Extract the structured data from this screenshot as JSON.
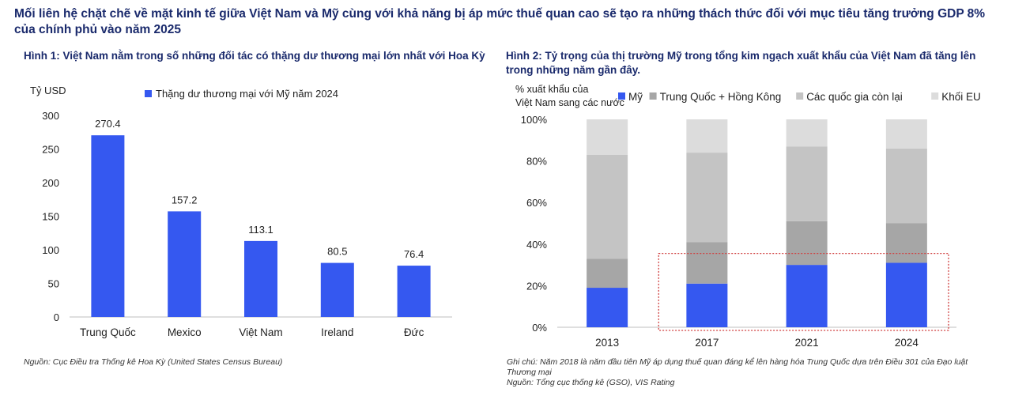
{
  "headline": "Mối liên hệ chặt chẽ về mặt kinh tế giữa Việt Nam và Mỹ cùng với khả năng bị áp mức thuế quan cao sẽ tạo ra những thách thức đối với mục tiêu tăng trưởng GDP 8% của chính phủ vào năm 2025",
  "figures": [
    {
      "title": "Hình 1: Việt Nam nằm trong số những đối tác có thặng dư thương mại lớn nhất với Hoa Kỳ",
      "notes": [
        "Nguồn: Cục Điều tra Thống kê Hoa Kỳ (United States Census Bureau)"
      ]
    },
    {
      "title": "Hình 2: Tỷ trọng của thị trường Mỹ trong tổng kim ngạch xuất khẩu của Việt Nam đã tăng lên trong những năm gần đây.",
      "notes": [
        "Ghi chú: Năm 2018 là năm đầu tiên Mỹ áp dụng thuế quan đáng kể lên hàng hóa Trung Quốc dựa trên Điều 301 của Đạo luật Thương mại",
        "Nguồn: Tổng cục thống kê (GSO), VIS Rating"
      ]
    }
  ],
  "chart_data": [
    {
      "type": "bar",
      "ylabel": "Tỷ USD",
      "ylim": [
        0,
        300
      ],
      "yticks": [
        "0",
        "50",
        "100",
        "150",
        "200",
        "250",
        "300"
      ],
      "categories": [
        "Trung Quốc",
        "Mexico",
        "Việt Nam",
        "Ireland",
        "Đức"
      ],
      "series": [
        {
          "name": "Thặng dư thương mại với Mỹ năm 2024",
          "values": [
            270.4,
            157.2,
            113.1,
            80.5,
            76.4
          ],
          "labels": [
            "270.4",
            "157.2",
            "113.1",
            "80.5",
            "76.4"
          ],
          "color": "#3558f0"
        }
      ],
      "legend_position": "top",
      "grid": false
    },
    {
      "type": "bar",
      "stacked": true,
      "ylabel": "% xuất khẩu của Việt Nam sang các nước",
      "ylim": [
        0,
        100
      ],
      "yticks": [
        "0%",
        "20%",
        "40%",
        "60%",
        "80%",
        "100%"
      ],
      "categories": [
        "2013",
        "2017",
        "2021",
        "2024"
      ],
      "series": [
        {
          "name": "Mỹ",
          "values": [
            19,
            21,
            30,
            31
          ],
          "color": "#3558f0"
        },
        {
          "name": "Trung Quốc + Hồng Kông",
          "values": [
            14,
            20,
            21,
            19
          ],
          "color": "#a6a6a6"
        },
        {
          "name": "Các quốc gia còn lại",
          "values": [
            50,
            43,
            36,
            36
          ],
          "color": "#c4c4c4"
        },
        {
          "name": "Khối EU",
          "values": [
            17,
            16,
            13,
            14
          ],
          "color": "#dcdcdc"
        }
      ],
      "legend_position": "top",
      "grid": false,
      "highlight": {
        "from_category": "2017",
        "to_category": "2024",
        "color": "#d04040",
        "style": "dashed"
      }
    }
  ]
}
